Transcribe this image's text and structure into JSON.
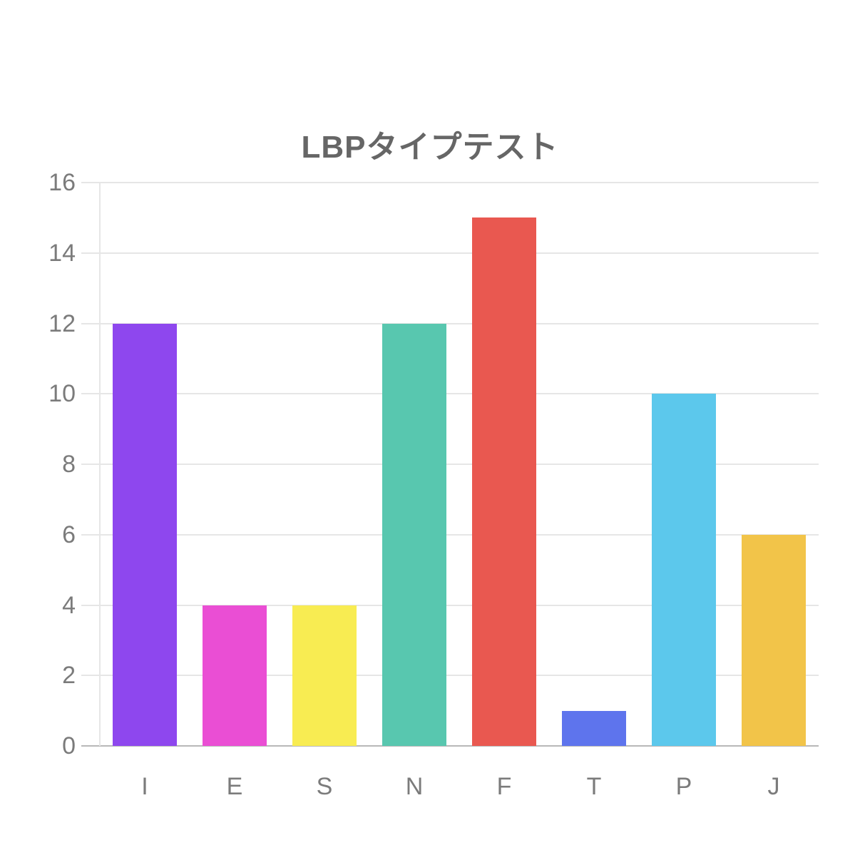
{
  "title": "LBPタイプテスト",
  "chart_data": {
    "type": "bar",
    "title": "LBPタイプテスト",
    "categories": [
      "I",
      "E",
      "S",
      "N",
      "F",
      "T",
      "P",
      "J"
    ],
    "values": [
      12,
      4,
      4,
      12,
      15,
      1,
      10,
      6
    ],
    "bar_colors": [
      "#8e47ee",
      "#ea4ed4",
      "#f8ec52",
      "#58c7af",
      "#e95850",
      "#5e74ed",
      "#5cc8ec",
      "#f2c449"
    ],
    "xlabel": "",
    "ylabel": "",
    "ylim": [
      0,
      16
    ],
    "yticks": [
      0,
      2,
      4,
      6,
      8,
      10,
      12,
      14,
      16
    ],
    "grid": true,
    "legend_position": "none"
  },
  "colors": {
    "background": "#ffffff",
    "title_text": "#666666",
    "axis_text": "#7b7b7b",
    "gridline": "#e6e6e6",
    "axis_line": "#b8b8b8"
  }
}
